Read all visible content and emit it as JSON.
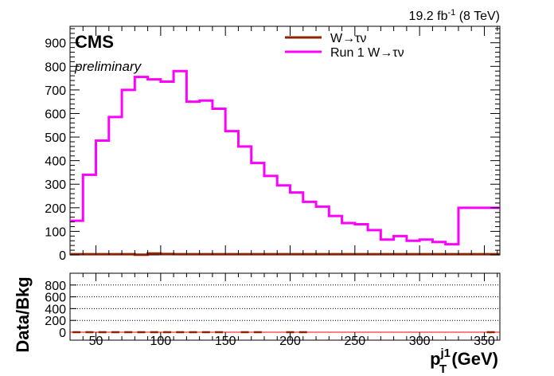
{
  "header": {
    "lumi_value": "19.2 fb",
    "lumi_exp": "-1",
    "lumi_energy": "(8 TeV)"
  },
  "labels": {
    "experiment": "CMS",
    "status": "preliminary"
  },
  "chart_data": [
    {
      "type": "line",
      "panel": "main",
      "step": true,
      "xlim": [
        30,
        362
      ],
      "ylim": [
        0,
        970
      ],
      "xticks": [
        50,
        100,
        150,
        200,
        250,
        300,
        350
      ],
      "yticks": [
        0,
        100,
        200,
        300,
        400,
        500,
        600,
        700,
        800,
        900
      ],
      "bin_edges": [
        30,
        40,
        50,
        60,
        70,
        80,
        90,
        100,
        110,
        120,
        130,
        140,
        150,
        160,
        170,
        180,
        190,
        200,
        210,
        220,
        230,
        240,
        250,
        260,
        270,
        280,
        290,
        300,
        310,
        320,
        330,
        340,
        350,
        362
      ],
      "series": [
        {
          "name": "W→τν",
          "color": "#8B2500",
          "values": [
            3,
            3,
            3,
            3,
            3,
            1,
            6,
            4,
            3,
            3,
            3,
            3,
            3,
            3,
            3,
            3,
            3,
            3,
            3,
            3,
            3,
            3,
            3,
            3,
            3,
            3,
            3,
            3,
            3,
            3,
            3,
            3,
            3
          ]
        },
        {
          "name": "Run 1 W→τν",
          "color": "#FF00FF",
          "values": [
            145,
            340,
            485,
            585,
            700,
            755,
            745,
            735,
            780,
            650,
            655,
            620,
            525,
            460,
            390,
            335,
            295,
            265,
            225,
            205,
            165,
            135,
            130,
            105,
            65,
            80,
            60,
            65,
            55,
            45,
            200,
            200,
            200
          ]
        }
      ],
      "legend": "top-right",
      "grid": false
    },
    {
      "type": "scatter",
      "panel": "ratio",
      "xlim": [
        30,
        362
      ],
      "ylim": [
        0,
        1000
      ],
      "xticks": [
        50,
        100,
        150,
        200,
        250,
        300,
        350
      ],
      "yticks": [
        0,
        200,
        400,
        600,
        800
      ],
      "xlabel_main": "p",
      "xlabel_sup": "j1",
      "xlabel_sub": "T",
      "xlabel_unit": " (GeV)",
      "ylabel": "Data/Bkg",
      "reference_line": 0,
      "grid": true,
      "grid_lines": [
        200,
        400,
        600,
        800
      ],
      "point_x": [
        35,
        45,
        55,
        65,
        75,
        85,
        95,
        105,
        115,
        125,
        135,
        145,
        165,
        175,
        200,
        210,
        355
      ],
      "point_y": [
        0,
        0,
        0,
        0,
        0,
        0,
        0,
        0,
        0,
        0,
        0,
        0,
        0,
        0,
        0,
        0,
        0
      ]
    }
  ]
}
